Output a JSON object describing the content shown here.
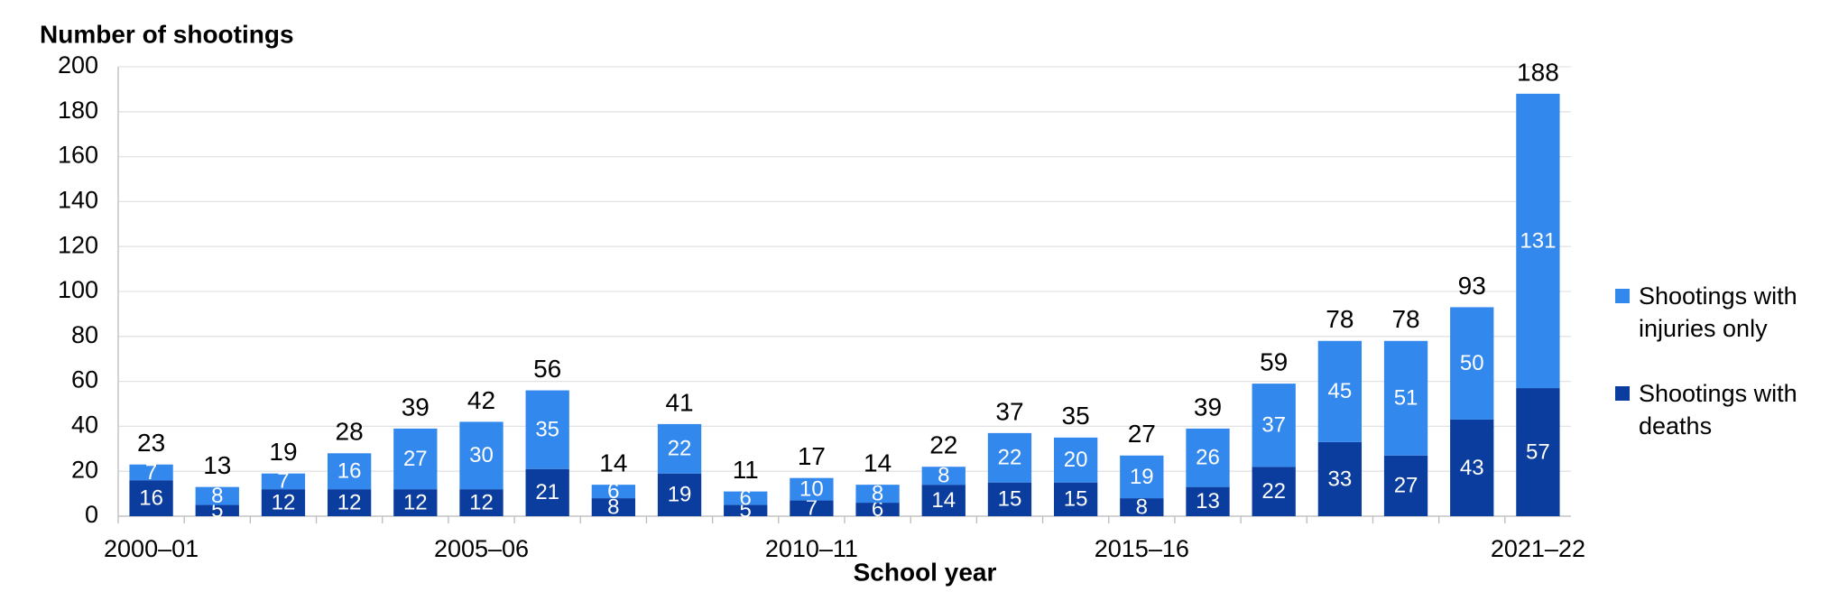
{
  "chart_data": {
    "type": "stacked-bar",
    "y_axis_title": "Number of shootings",
    "x_axis_title": "School year",
    "categories": [
      "2000–01",
      null,
      null,
      null,
      null,
      "2005–06",
      null,
      null,
      null,
      null,
      "2010–11",
      null,
      null,
      null,
      null,
      "2015–16",
      null,
      null,
      null,
      null,
      null,
      "2021–22"
    ],
    "series": [
      {
        "name": "Shootings with deaths",
        "color": "#0b3d9e",
        "values": [
          16,
          5,
          12,
          12,
          12,
          12,
          21,
          8,
          19,
          5,
          7,
          6,
          14,
          15,
          15,
          8,
          13,
          22,
          33,
          27,
          43,
          57
        ]
      },
      {
        "name": "Shootings with injuries only",
        "color": "#3388ee",
        "values": [
          7,
          8,
          7,
          16,
          27,
          30,
          35,
          6,
          22,
          6,
          10,
          8,
          8,
          22,
          20,
          19,
          26,
          37,
          45,
          51,
          50,
          131
        ]
      }
    ],
    "totals": [
      23,
      13,
      19,
      28,
      39,
      42,
      56,
      14,
      41,
      11,
      17,
      14,
      22,
      37,
      35,
      27,
      39,
      59,
      78,
      78,
      93,
      188
    ],
    "ylim": [
      0,
      200
    ],
    "yticks": [
      0,
      20,
      40,
      60,
      80,
      100,
      120,
      140,
      160,
      180,
      200
    ],
    "grid": true,
    "legend": "right"
  }
}
